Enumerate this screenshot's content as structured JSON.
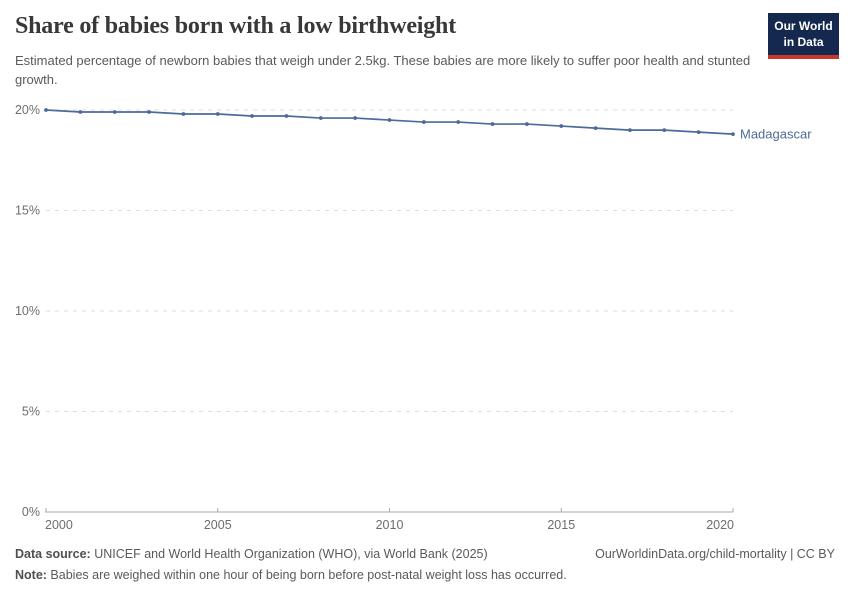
{
  "header": {
    "title": "Share of babies born with a low birthweight",
    "subtitle": "Estimated percentage of newborn babies that weigh under 2.5kg. These babies are more likely to suffer poor health and stunted growth.",
    "logo": {
      "line1": "Our World",
      "line2": "in Data",
      "bg_color": "#14294d",
      "bar_color": "#c63a2e"
    }
  },
  "chart_data": {
    "type": "line",
    "title": "Share of babies born with a low birthweight",
    "subtitle": "Estimated percentage of newborn babies that weigh under 2.5kg. These babies are more likely to suffer poor health and stunted growth.",
    "xlabel": "",
    "ylabel": "",
    "xlim": [
      2000,
      2020
    ],
    "ylim": [
      0,
      20
    ],
    "grid": "horizontal-dashed",
    "legend_position": "end-of-line-label",
    "x_ticks": [
      2000,
      2005,
      2010,
      2015,
      2020
    ],
    "y_ticks": [
      {
        "value": 0,
        "label": "0%"
      },
      {
        "value": 5,
        "label": "5%"
      },
      {
        "value": 10,
        "label": "10%"
      },
      {
        "value": 15,
        "label": "15%"
      },
      {
        "value": 20,
        "label": "20%"
      }
    ],
    "series": [
      {
        "name": "Madagascar",
        "color": "#4c6a9c",
        "x": [
          2000,
          2001,
          2002,
          2003,
          2004,
          2005,
          2006,
          2007,
          2008,
          2009,
          2010,
          2011,
          2012,
          2013,
          2014,
          2015,
          2016,
          2017,
          2018,
          2019,
          2020
        ],
        "values": [
          20.0,
          19.9,
          19.9,
          19.9,
          19.8,
          19.8,
          19.7,
          19.7,
          19.6,
          19.6,
          19.5,
          19.4,
          19.4,
          19.3,
          19.3,
          19.2,
          19.1,
          19.0,
          19.0,
          18.9,
          18.8
        ]
      }
    ],
    "colors": {
      "gridline": "#dedede",
      "axis": "#a8a8a8",
      "tick_label": "#6e6e6e"
    }
  },
  "footer": {
    "datasource_label": "Data source:",
    "datasource_text": " UNICEF and World Health Organization (WHO), via World Bank (2025)",
    "link_text": "OurWorldinData.org/child-mortality | CC BY",
    "note_label": "Note:",
    "note_text": " Babies are weighed within one hour of being born before post-natal weight loss has occurred."
  }
}
